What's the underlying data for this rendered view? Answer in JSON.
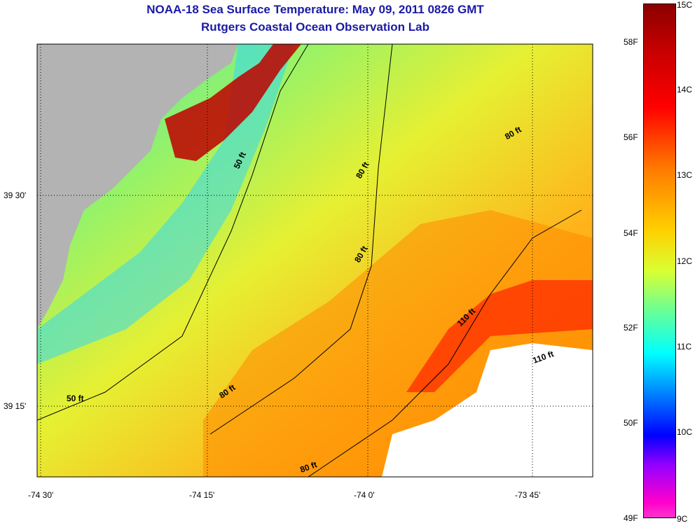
{
  "title": {
    "line1": "NOAA-18 Sea Surface Temperature:  May 09, 2011 0826 GMT",
    "line2": "Rutgers Coastal Ocean Observation Lab"
  },
  "axes": {
    "lon_labels": [
      "-74 30'",
      "-74 15'",
      "-74 0'",
      "-73 45'"
    ],
    "lat_labels": [
      "39 30'",
      "39 15'"
    ]
  },
  "contours": {
    "labels": [
      "50 ft",
      "80 ft",
      "80 ft",
      "80 ft",
      "110 ft",
      "110 ft",
      "50 ft",
      "80 ft",
      "80 ft"
    ]
  },
  "colorbar": {
    "celsius": [
      "15C",
      "14C",
      "13C",
      "12C",
      "11C",
      "10C",
      "9C"
    ],
    "fahrenheit": [
      "58F",
      "56F",
      "54F",
      "52F",
      "50F",
      "49F"
    ]
  },
  "colors": {
    "land": "#b3b3b3",
    "title": "#1a1aa6",
    "no_data": "#ffffff"
  }
}
